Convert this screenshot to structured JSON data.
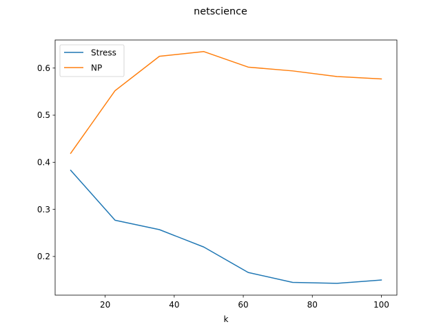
{
  "chart_data": {
    "type": "line",
    "title": "netscience",
    "xlabel": "k",
    "ylabel": "",
    "x": [
      10,
      22.86,
      35.71,
      48.57,
      61.43,
      74.29,
      87.14,
      100
    ],
    "series": [
      {
        "name": "Stress",
        "color": "#1f77b4",
        "values": [
          0.383,
          0.277,
          0.257,
          0.22,
          0.166,
          0.145,
          0.143,
          0.15
        ]
      },
      {
        "name": "NP",
        "color": "#ff7f0e",
        "values": [
          0.419,
          0.552,
          0.625,
          0.635,
          0.602,
          0.594,
          0.582,
          0.577
        ]
      }
    ],
    "xlim": [
      5.5,
      104.5
    ],
    "ylim": [
      0.1179,
      0.6596
    ],
    "xticks": [
      20,
      40,
      60,
      80,
      100
    ],
    "yticks": [
      0.2,
      0.3,
      0.4,
      0.5,
      0.6
    ],
    "xtick_labels": [
      "20",
      "40",
      "60",
      "80",
      "100"
    ],
    "ytick_labels": [
      "0.2",
      "0.3",
      "0.4",
      "0.5",
      "0.6"
    ],
    "grid": false,
    "legend_position": "top-left"
  }
}
